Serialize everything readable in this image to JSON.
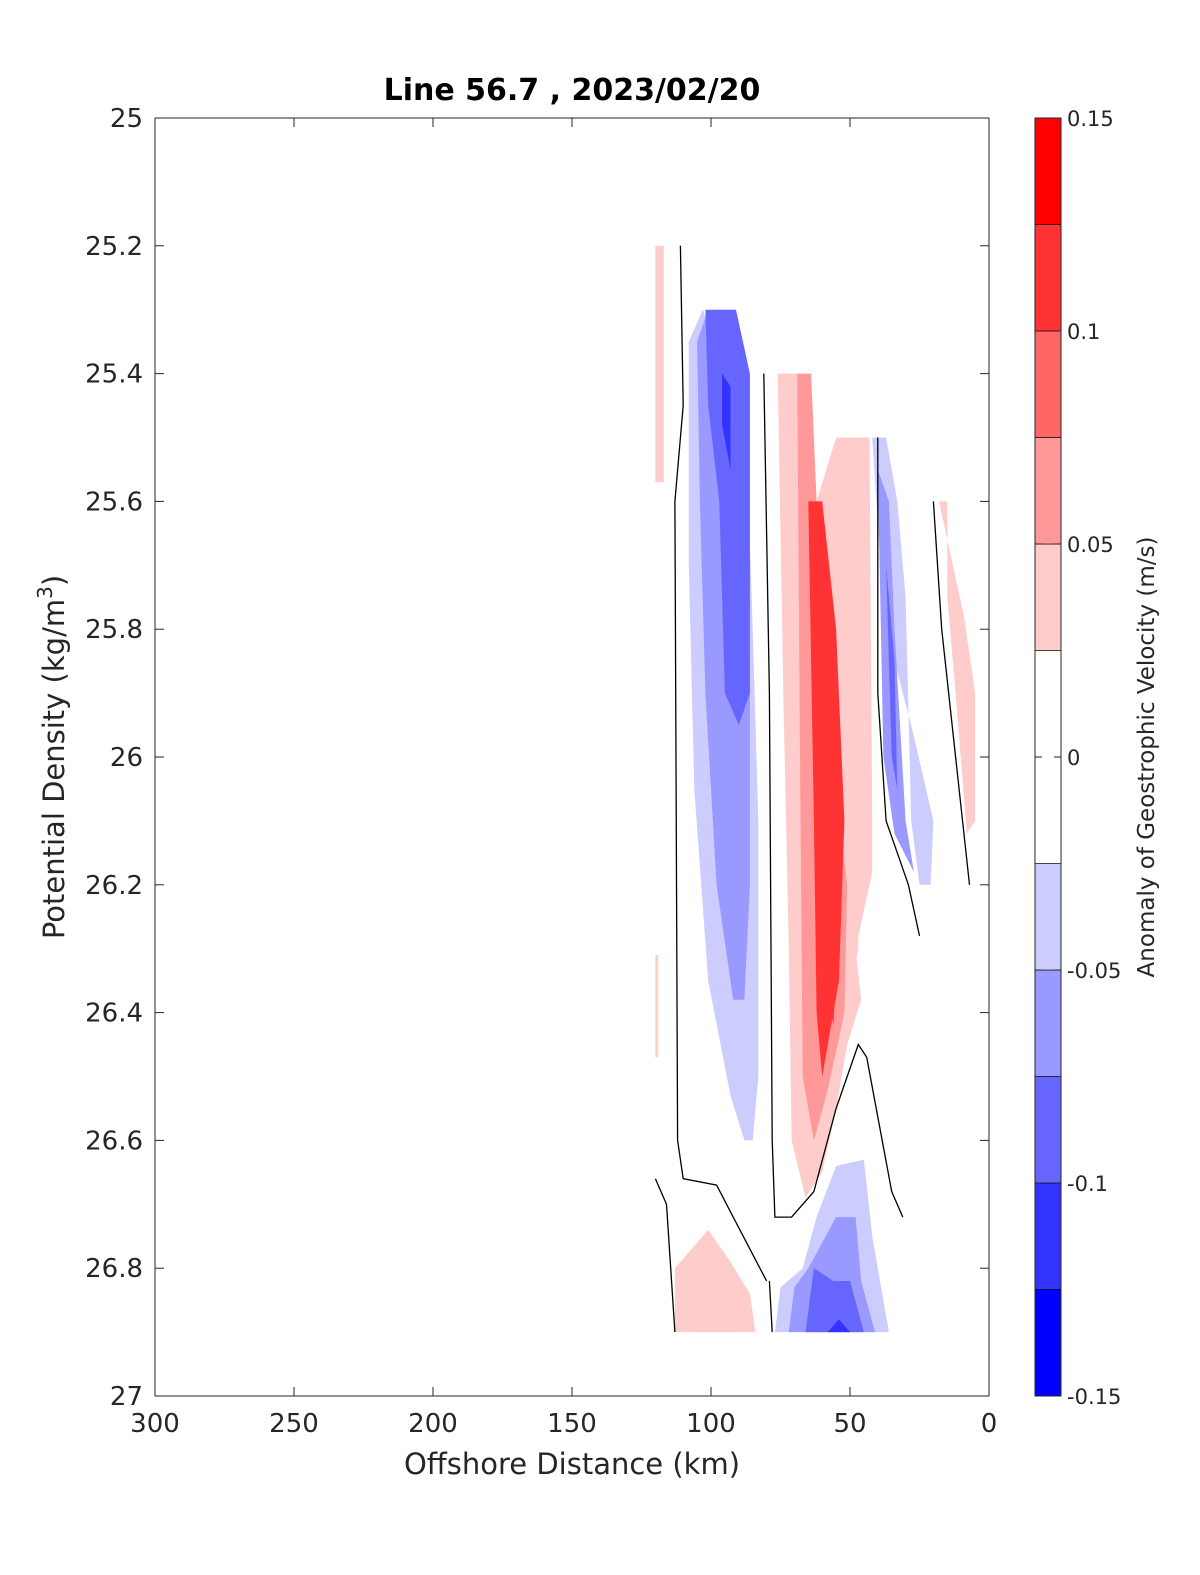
{
  "chart_data": {
    "type": "contourf",
    "title": "Line 56.7 , 2023/02/20",
    "xlabel": "Offshore Distance (km)",
    "ylabel_main": "Potential Density (kg/m",
    "ylabel_sup": "3",
    "ylabel_close": ")",
    "xlim": [
      300,
      0
    ],
    "ylim": [
      27,
      25
    ],
    "x_reversed": true,
    "y_reversed": true,
    "xticks": [
      "300",
      "250",
      "200",
      "150",
      "100",
      "50",
      "0"
    ],
    "yticks": [
      "25",
      "25.2",
      "25.4",
      "25.6",
      "25.8",
      "26",
      "26.2",
      "26.4",
      "26.6",
      "26.8",
      "27"
    ],
    "colorbar": {
      "label": "Anomaly of Geostrophic Velocity (m/s)",
      "range": [
        -0.15,
        0.15
      ],
      "ticks": [
        "0.15",
        "0.1",
        "0.05",
        "0",
        "-0.05",
        "-0.1",
        "-0.15"
      ],
      "levels": [
        -0.15,
        -0.125,
        -0.1,
        -0.075,
        -0.05,
        -0.025,
        0.025,
        0.05,
        0.075,
        0.1,
        0.125,
        0.15
      ],
      "colors": [
        "#0000ff",
        "#3333ff",
        "#6666ff",
        "#9999ff",
        "#ccccff",
        "#ffffff",
        "#ffcccc",
        "#ff9999",
        "#ff6666",
        "#ff3333",
        "#ff0000"
      ]
    },
    "contour_regions": [
      {
        "level": 0.025,
        "points": [
          [
            120,
            25.2
          ],
          [
            117,
            25.2
          ],
          [
            117,
            25.57
          ],
          [
            120,
            25.57
          ]
        ]
      },
      {
        "level": 0.025,
        "points": [
          [
            120,
            26.31
          ],
          [
            119,
            26.31
          ],
          [
            119,
            26.47
          ],
          [
            120,
            26.47
          ]
        ]
      },
      {
        "level": -0.025,
        "points": [
          [
            108,
            25.35
          ],
          [
            103,
            25.3
          ],
          [
            93,
            25.4
          ],
          [
            88,
            25.4
          ],
          [
            85,
            25.8
          ],
          [
            83,
            26.1
          ],
          [
            83,
            26.5
          ],
          [
            85,
            26.6
          ],
          [
            88,
            26.6
          ],
          [
            93,
            26.53
          ],
          [
            101,
            26.35
          ],
          [
            106,
            26.05
          ],
          [
            108,
            25.7
          ]
        ]
      },
      {
        "level": -0.05,
        "points": [
          [
            105,
            25.35
          ],
          [
            101,
            25.3
          ],
          [
            91,
            25.4
          ],
          [
            87,
            25.4
          ],
          [
            86,
            25.9
          ],
          [
            86,
            26.2
          ],
          [
            88,
            26.38
          ],
          [
            92,
            26.38
          ],
          [
            98,
            26.2
          ],
          [
            102,
            25.9
          ],
          [
            104,
            25.6
          ]
        ]
      },
      {
        "level": -0.075,
        "points": [
          [
            102,
            25.3
          ],
          [
            91,
            25.3
          ],
          [
            86,
            25.4
          ],
          [
            86,
            25.9
          ],
          [
            90,
            25.95
          ],
          [
            95,
            25.9
          ],
          [
            97,
            25.6
          ],
          [
            101,
            25.45
          ]
        ]
      },
      {
        "level": -0.1,
        "points": [
          [
            96,
            25.4
          ],
          [
            93,
            25.42
          ],
          [
            93,
            25.55
          ],
          [
            96,
            25.48
          ]
        ]
      },
      {
        "level": 0.025,
        "points": [
          [
            76,
            25.4
          ],
          [
            71,
            25.4
          ],
          [
            62,
            25.6
          ],
          [
            52,
            25.5
          ],
          [
            43,
            25.5
          ],
          [
            42,
            26.1
          ],
          [
            42,
            26.18
          ],
          [
            48,
            26.3
          ],
          [
            46,
            26.38
          ],
          [
            51,
            26.45
          ],
          [
            55,
            26.55
          ],
          [
            60,
            26.65
          ],
          [
            66,
            26.69
          ],
          [
            71,
            26.6
          ],
          [
            72,
            26.3
          ],
          [
            74,
            25.9
          ]
        ]
      },
      {
        "level": 0.05,
        "points": [
          [
            73,
            25.4
          ],
          [
            69,
            25.4
          ],
          [
            62,
            25.6
          ],
          [
            55,
            25.5
          ],
          [
            47,
            25.5
          ],
          [
            48,
            26.0
          ],
          [
            47,
            26.3
          ],
          [
            53,
            26.43
          ],
          [
            58,
            26.58
          ],
          [
            63,
            26.65
          ],
          [
            67,
            26.6
          ],
          [
            69,
            26.2
          ],
          [
            71,
            25.9
          ]
        ]
      },
      {
        "level": 0.075,
        "points": [
          [
            69,
            25.4
          ],
          [
            64,
            25.4
          ],
          [
            62,
            25.6
          ],
          [
            60,
            25.7
          ],
          [
            58,
            25.95
          ],
          [
            51,
            26.2
          ],
          [
            52,
            26.4
          ],
          [
            58,
            26.52
          ],
          [
            63,
            26.6
          ],
          [
            67,
            26.5
          ],
          [
            68,
            26.0
          ]
        ]
      },
      {
        "level": 0.1,
        "points": [
          [
            65,
            25.6
          ],
          [
            60,
            25.6
          ],
          [
            55,
            25.8
          ],
          [
            52,
            26.1
          ],
          [
            54,
            26.35
          ],
          [
            60,
            26.5
          ],
          [
            62,
            26.4
          ],
          [
            63,
            26.1
          ]
        ]
      },
      {
        "level": 0.125,
        "points": [
          [
            61,
            25.75
          ],
          [
            58,
            25.78
          ],
          [
            55,
            26.0
          ],
          [
            53,
            26.2
          ],
          [
            56,
            26.42
          ],
          [
            61,
            26.3
          ],
          [
            62,
            26.0
          ]
        ]
      },
      {
        "level": -0.025,
        "points": [
          [
            42,
            25.5
          ],
          [
            37,
            25.5
          ],
          [
            33,
            25.6
          ],
          [
            30,
            25.75
          ],
          [
            28,
            26.1
          ],
          [
            25,
            26.2
          ],
          [
            21,
            26.2
          ],
          [
            20,
            26.1
          ],
          [
            28,
            25.95
          ],
          [
            34,
            25.85
          ],
          [
            39,
            25.7
          ]
        ]
      },
      {
        "level": -0.05,
        "points": [
          [
            40,
            25.55
          ],
          [
            36,
            25.6
          ],
          [
            34,
            25.8
          ],
          [
            32,
            25.95
          ],
          [
            30,
            26.1
          ],
          [
            27,
            26.18
          ],
          [
            34,
            26.12
          ],
          [
            38,
            26.0
          ]
        ]
      },
      {
        "level": -0.075,
        "points": [
          [
            37,
            25.7
          ],
          [
            34,
            25.85
          ],
          [
            33,
            26.05
          ],
          [
            31,
            26.1
          ],
          [
            35,
            26.0
          ],
          [
            36,
            25.85
          ]
        ]
      },
      {
        "level": 0.025,
        "points": [
          [
            18,
            25.6
          ],
          [
            15,
            25.6
          ],
          [
            15,
            25.75
          ],
          [
            12,
            25.9
          ],
          [
            8,
            26.12
          ],
          [
            5,
            26.1
          ],
          [
            5,
            25.9
          ],
          [
            9,
            25.78
          ]
        ]
      },
      {
        "level": 0.025,
        "points": [
          [
            113,
            26.9
          ],
          [
            113,
            26.8
          ],
          [
            101,
            26.74
          ],
          [
            93,
            26.79
          ],
          [
            86,
            26.84
          ],
          [
            84,
            26.9
          ]
        ]
      },
      {
        "level": 0.05,
        "points": [
          [
            106,
            26.9
          ],
          [
            104,
            26.82
          ],
          [
            97,
            26.8
          ],
          [
            93,
            26.9
          ]
        ]
      },
      {
        "level": -0.025,
        "points": [
          [
            77,
            26.9
          ],
          [
            75,
            26.83
          ],
          [
            67,
            26.8
          ],
          [
            62,
            26.72
          ],
          [
            55,
            26.64
          ],
          [
            45,
            26.63
          ],
          [
            42,
            26.75
          ],
          [
            36,
            26.9
          ]
        ]
      },
      {
        "level": -0.05,
        "points": [
          [
            72,
            26.9
          ],
          [
            70,
            26.83
          ],
          [
            65,
            26.8
          ],
          [
            55,
            26.72
          ],
          [
            48,
            26.72
          ],
          [
            46,
            26.82
          ],
          [
            41,
            26.9
          ]
        ]
      },
      {
        "level": -0.075,
        "points": [
          [
            66,
            26.9
          ],
          [
            63,
            26.8
          ],
          [
            56,
            26.82
          ],
          [
            50,
            26.82
          ],
          [
            45,
            26.9
          ]
        ]
      },
      {
        "level": -0.1,
        "points": [
          [
            58,
            26.9
          ],
          [
            54,
            26.88
          ],
          [
            50,
            26.9
          ]
        ]
      }
    ],
    "zero_contours": [
      [
        [
          111,
          25.2
        ],
        [
          110,
          25.45
        ],
        [
          113,
          25.6
        ],
        [
          112,
          26.6
        ],
        [
          110,
          26.66
        ],
        [
          98,
          26.67
        ],
        [
          92,
          26.72
        ],
        [
          80,
          26.82
        ]
      ],
      [
        [
          81,
          25.4
        ],
        [
          79,
          25.9
        ],
        [
          78,
          26.6
        ],
        [
          77,
          26.72
        ],
        [
          71,
          26.72
        ],
        [
          63,
          26.68
        ],
        [
          55,
          26.55
        ],
        [
          47,
          26.45
        ],
        [
          44,
          26.47
        ],
        [
          35,
          26.68
        ],
        [
          31,
          26.72
        ]
      ],
      [
        [
          40,
          25.5
        ],
        [
          40,
          25.9
        ],
        [
          37,
          26.1
        ],
        [
          33,
          26.15
        ],
        [
          29,
          26.2
        ],
        [
          25,
          26.28
        ]
      ],
      [
        [
          20,
          25.6
        ],
        [
          17,
          25.8
        ],
        [
          12,
          26.0
        ],
        [
          7,
          26.2
        ]
      ],
      [
        [
          120,
          26.66
        ],
        [
          116,
          26.7
        ],
        [
          113,
          26.9
        ]
      ],
      [
        [
          79,
          26.82
        ],
        [
          78,
          26.9
        ]
      ]
    ]
  }
}
